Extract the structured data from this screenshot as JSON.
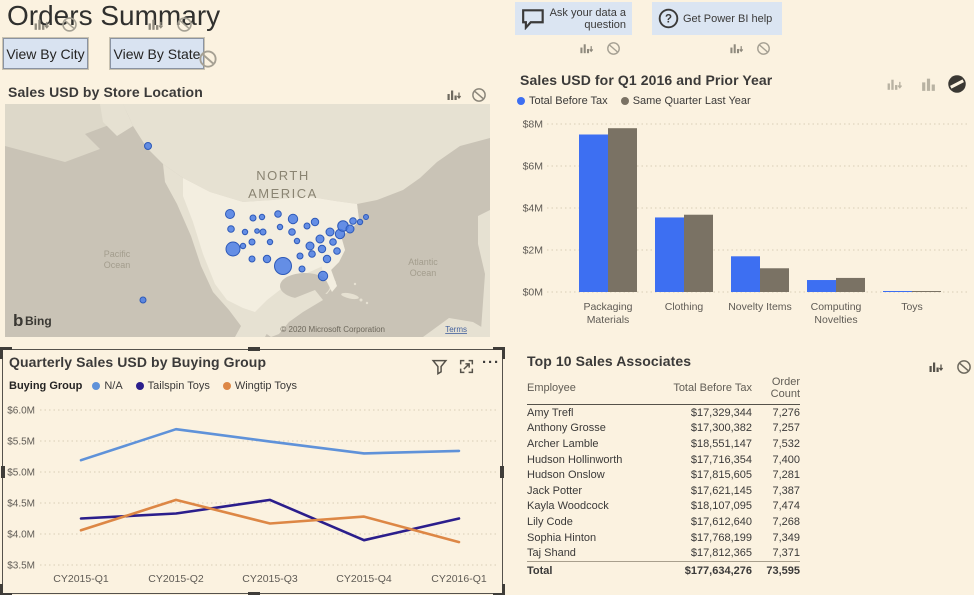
{
  "page": {
    "title": "Orders Summary",
    "background": "#fbf2e0"
  },
  "toolbar": {
    "view_by_city": "View By City",
    "view_by_state": "View By State"
  },
  "qa": {
    "ask_label": "Ask your data a question",
    "help_label": "Get Power BI help"
  },
  "map_visual": {
    "title": "Sales USD by Store Location",
    "region_lines": [
      "NORTH",
      "AMERICA"
    ],
    "pacific_lines": [
      "Pacific",
      "Ocean"
    ],
    "atlantic_lines": [
      "Atlantic",
      "Ocean"
    ],
    "bing_label": "Bing",
    "copyright": "© 2020 Microsoft Corporation",
    "terms_link": "Terms",
    "bubble_color": "#4a7de5",
    "bubble_border": "#2d59b8",
    "bubbles": [
      [
        143,
        42,
        3.5
      ],
      [
        138,
        196,
        3
      ],
      [
        225,
        110,
        4.5
      ],
      [
        226,
        125,
        3.3
      ],
      [
        240,
        128,
        2.7
      ],
      [
        248,
        114,
        3
      ],
      [
        252,
        127,
        2.3
      ],
      [
        228,
        145,
        7
      ],
      [
        238,
        142,
        2.7
      ],
      [
        247,
        138,
        3
      ],
      [
        258,
        128,
        3
      ],
      [
        257,
        113,
        2.7
      ],
      [
        273,
        110,
        3.3
      ],
      [
        275,
        123,
        2.7
      ],
      [
        265,
        138,
        2.7
      ],
      [
        247,
        155,
        3
      ],
      [
        262,
        155,
        3.7
      ],
      [
        288,
        115,
        4.7
      ],
      [
        287,
        128,
        3.3
      ],
      [
        292,
        137,
        2.7
      ],
      [
        302,
        122,
        3
      ],
      [
        310,
        118,
        3.7
      ],
      [
        278,
        162,
        8.5
      ],
      [
        295,
        152,
        3
      ],
      [
        297,
        165,
        3
      ],
      [
        305,
        142,
        4
      ],
      [
        307,
        150,
        3.3
      ],
      [
        315,
        135,
        4
      ],
      [
        317,
        145,
        3.7
      ],
      [
        322,
        155,
        3.7
      ],
      [
        318,
        172,
        4.7
      ],
      [
        325,
        128,
        4
      ],
      [
        328,
        138,
        3.3
      ],
      [
        332,
        147,
        3.3
      ],
      [
        335,
        130,
        4.7
      ],
      [
        338,
        122,
        5.3
      ],
      [
        345,
        125,
        4
      ],
      [
        348,
        117,
        3.3
      ],
      [
        355,
        118,
        2.7
      ],
      [
        361,
        113,
        2.5
      ]
    ]
  },
  "bar_visual": {
    "title": "Sales USD for Q1 2016 and Prior Year",
    "chart_data": {
      "type": "bar",
      "categories": [
        "Packaging Materials",
        "Clothing",
        "Novelty Items",
        "Computing Novelties",
        "Toys"
      ],
      "category_lines": [
        [
          "Packaging",
          "Materials"
        ],
        [
          "Clothing"
        ],
        [
          "Novelty Items"
        ],
        [
          "Computing",
          "Novelties"
        ],
        [
          "Toys"
        ]
      ],
      "series": [
        {
          "name": "Total Before Tax",
          "color": "#3d6ff2",
          "values": [
            7.5,
            3.55,
            1.7,
            0.57,
            0.03
          ]
        },
        {
          "name": "Same Quarter Last Year",
          "color": "#7a7264",
          "values": [
            7.8,
            3.68,
            1.13,
            0.67,
            0.03
          ]
        }
      ],
      "y_ticks": [
        "$0M",
        "$2M",
        "$4M",
        "$6M",
        "$8M"
      ],
      "ylim": [
        0,
        8
      ],
      "ylabel": "",
      "xlabel": "",
      "grid": "dotted",
      "legend_position": "top"
    }
  },
  "line_visual": {
    "title": "Quarterly Sales USD by Buying Group",
    "legend_title": "Buying Group",
    "chart_data": {
      "type": "line",
      "x": [
        "CY2015-Q1",
        "CY2015-Q2",
        "CY2015-Q3",
        "CY2015-Q4",
        "CY2016-Q1"
      ],
      "series": [
        {
          "name": "N/A",
          "color": "#5f92d9",
          "values": [
            5.19,
            5.69,
            5.49,
            5.3,
            5.34
          ]
        },
        {
          "name": "Tailspin Toys",
          "color": "#2b1e8c",
          "values": [
            4.25,
            4.33,
            4.55,
            3.9,
            4.25
          ]
        },
        {
          "name": "Wingtip Toys",
          "color": "#dd8745",
          "values": [
            4.06,
            4.55,
            4.17,
            4.28,
            3.87
          ]
        }
      ],
      "y_ticks": [
        "$6.0M",
        "$5.5M",
        "$5.0M",
        "$4.5M",
        "$4.0M",
        "$3.5M"
      ],
      "ylim": [
        3.5,
        6.0
      ],
      "grid": "dotted",
      "legend_position": "top"
    }
  },
  "table_visual": {
    "title": "Top 10 Sales Associates",
    "columns": [
      "Employee",
      "Total Before Tax",
      "Order Count"
    ],
    "rows": [
      [
        "Amy Trefl",
        "$17,329,344",
        "7,276"
      ],
      [
        "Anthony Grosse",
        "$17,300,382",
        "7,257"
      ],
      [
        "Archer Lamble",
        "$18,551,147",
        "7,532"
      ],
      [
        "Hudson Hollinworth",
        "$17,716,354",
        "7,400"
      ],
      [
        "Hudson Onslow",
        "$17,815,605",
        "7,281"
      ],
      [
        "Jack Potter",
        "$17,621,145",
        "7,387"
      ],
      [
        "Kayla Woodcock",
        "$18,107,095",
        "7,474"
      ],
      [
        "Lily Code",
        "$17,612,640",
        "7,268"
      ],
      [
        "Sophia Hinton",
        "$17,768,199",
        "7,349"
      ],
      [
        "Taj Shand",
        "$17,812,365",
        "7,371"
      ]
    ],
    "total_row": [
      "Total",
      "$177,634,276",
      "73,595"
    ]
  }
}
